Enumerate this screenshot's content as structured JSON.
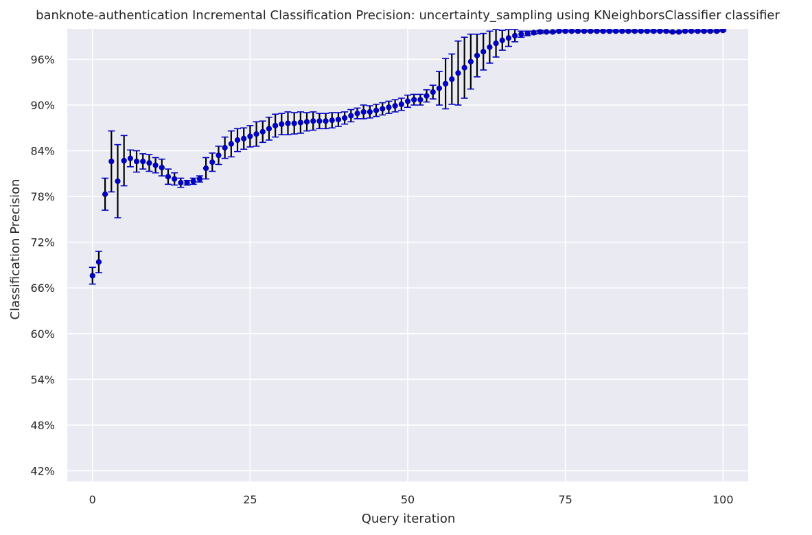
{
  "chart_data": {
    "type": "scatter",
    "title": "banknote-authentication Incremental Classification Precision: uncertainty_sampling using KNeighborsClassifier classifier",
    "xlabel": "Query iteration",
    "ylabel": "Classification Precision",
    "xlim": [
      -4,
      104
    ],
    "ylim": [
      0.406,
      1.0
    ],
    "x_ticks": [
      0,
      25,
      50,
      75,
      100
    ],
    "x_tick_labels": [
      "0",
      "25",
      "50",
      "75",
      "100"
    ],
    "y_ticks": [
      0.42,
      0.48,
      0.54,
      0.6,
      0.66,
      0.72,
      0.78,
      0.84,
      0.9,
      0.96
    ],
    "y_tick_labels": [
      "42%",
      "48%",
      "54%",
      "60%",
      "66%",
      "72%",
      "78%",
      "84%",
      "90%",
      "96%"
    ],
    "grid": true,
    "colors": {
      "background": "#eaeaf2",
      "grid": "#ffffff",
      "marker": "#0000cc",
      "errorbar": "#000000",
      "cap": "#0000cc"
    },
    "series": [
      {
        "x": [
          0,
          1,
          2,
          3,
          4,
          5,
          6,
          7,
          8,
          9,
          10,
          11,
          12,
          13,
          14,
          15,
          16,
          17,
          18,
          19,
          20,
          21,
          22,
          23,
          24,
          25,
          26,
          27,
          28,
          29,
          30,
          31,
          32,
          33,
          34,
          35,
          36,
          37,
          38,
          39,
          40,
          41,
          42,
          43,
          44,
          45,
          46,
          47,
          48,
          49,
          50,
          51,
          52,
          53,
          54,
          55,
          56,
          57,
          58,
          59,
          60,
          61,
          62,
          63,
          64,
          65,
          66,
          67,
          68,
          69,
          70,
          71,
          72,
          73,
          74,
          75,
          76,
          77,
          78,
          79,
          80,
          81,
          82,
          83,
          84,
          85,
          86,
          87,
          88,
          89,
          90,
          91,
          92,
          93,
          94,
          95,
          96,
          97,
          98,
          99,
          100
        ],
        "y": [
          0.676,
          0.694,
          0.783,
          0.826,
          0.8,
          0.827,
          0.83,
          0.826,
          0.826,
          0.824,
          0.821,
          0.818,
          0.806,
          0.803,
          0.798,
          0.798,
          0.8,
          0.803,
          0.817,
          0.825,
          0.834,
          0.844,
          0.849,
          0.854,
          0.856,
          0.859,
          0.862,
          0.865,
          0.869,
          0.873,
          0.875,
          0.876,
          0.876,
          0.877,
          0.878,
          0.879,
          0.879,
          0.879,
          0.88,
          0.881,
          0.883,
          0.886,
          0.889,
          0.891,
          0.891,
          0.893,
          0.895,
          0.897,
          0.899,
          0.901,
          0.905,
          0.907,
          0.907,
          0.912,
          0.917,
          0.922,
          0.928,
          0.934,
          0.942,
          0.949,
          0.957,
          0.965,
          0.97,
          0.976,
          0.981,
          0.985,
          0.988,
          0.991,
          0.993,
          0.994,
          0.995,
          0.996,
          0.996,
          0.996,
          0.997,
          0.997,
          0.997,
          0.997,
          0.997,
          0.997,
          0.997,
          0.997,
          0.997,
          0.997,
          0.997,
          0.997,
          0.997,
          0.997,
          0.997,
          0.997,
          0.997,
          0.997,
          0.996,
          0.996,
          0.997,
          0.997,
          0.997,
          0.997,
          0.997,
          0.997,
          0.998
        ],
        "err": [
          0.011,
          0.014,
          0.021,
          0.04,
          0.048,
          0.033,
          0.011,
          0.014,
          0.01,
          0.011,
          0.01,
          0.011,
          0.01,
          0.008,
          0.006,
          0.003,
          0.004,
          0.004,
          0.014,
          0.012,
          0.012,
          0.014,
          0.017,
          0.015,
          0.014,
          0.014,
          0.016,
          0.014,
          0.015,
          0.015,
          0.014,
          0.015,
          0.014,
          0.014,
          0.012,
          0.012,
          0.01,
          0.01,
          0.01,
          0.009,
          0.008,
          0.008,
          0.007,
          0.009,
          0.008,
          0.008,
          0.008,
          0.008,
          0.008,
          0.008,
          0.008,
          0.007,
          0.007,
          0.008,
          0.009,
          0.022,
          0.033,
          0.033,
          0.042,
          0.04,
          0.036,
          0.028,
          0.024,
          0.021,
          0.018,
          0.013,
          0.011,
          0.008,
          0.004,
          0.003,
          0.002,
          0.002,
          0.001,
          0.001,
          0.001,
          0.001,
          0.001,
          0.001,
          0.001,
          0.001,
          0.001,
          0.001,
          0.001,
          0.001,
          0.001,
          0.001,
          0.001,
          0.001,
          0.001,
          0.001,
          0.001,
          0.001,
          0.001,
          0.001,
          0.001,
          0.001,
          0.001,
          0.001,
          0.001,
          0.001,
          0.001
        ]
      }
    ]
  }
}
